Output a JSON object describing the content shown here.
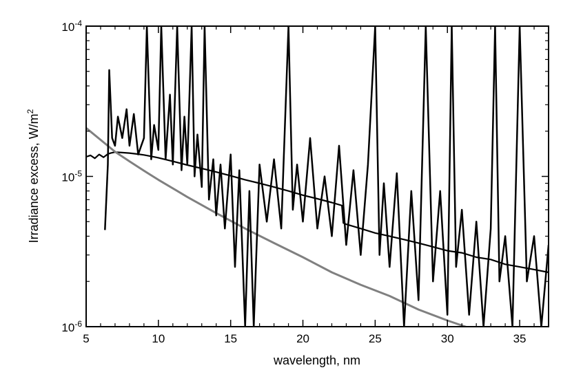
{
  "chart_data": {
    "type": "line",
    "title": "",
    "xlabel": "wavelength, nm",
    "ylabel_main": "Irradiance excess, W/m",
    "ylabel_sup": "2",
    "xlim": [
      5,
      37
    ],
    "ylim": [
      1e-06,
      0.0001
    ],
    "yscale": "log",
    "grid": false,
    "legend": "none",
    "x_ticks": [
      {
        "value": 5,
        "label": "5"
      },
      {
        "value": 10,
        "label": "10"
      },
      {
        "value": 15,
        "label": "15"
      },
      {
        "value": 20,
        "label": "20"
      },
      {
        "value": 25,
        "label": "25"
      },
      {
        "value": 30,
        "label": "30"
      },
      {
        "value": 35,
        "label": "35"
      }
    ],
    "y_ticks": [
      {
        "value": 1e-06,
        "base": "10",
        "exp": "-6"
      },
      {
        "value": 1e-05,
        "base": "10",
        "exp": "-5"
      },
      {
        "value": 0.0001,
        "base": "10",
        "exp": "-4"
      }
    ],
    "series": [
      {
        "color": "#000000",
        "x": [
          5.0,
          5.3,
          5.6,
          5.9,
          6.2,
          6.5,
          6.7,
          7.0,
          7.5,
          8.0,
          8.5,
          9.0,
          9.5,
          10.0,
          11.0,
          12.0,
          13.0,
          14.0,
          15.0,
          16.0,
          17.0,
          18.0,
          19.0,
          20.0,
          21.0,
          22.0,
          22.7,
          22.8,
          23.0,
          24.0,
          25.0,
          26.0,
          27.0,
          28.0,
          29.0,
          30.0,
          31.0,
          32.0,
          33.0,
          34.0,
          35.0,
          36.0,
          37.0
        ],
        "y": [
          1.35e-05,
          1.38e-05,
          1.32e-05,
          1.4e-05,
          1.34e-05,
          1.41e-05,
          1.43e-05,
          1.45e-05,
          1.44e-05,
          1.43e-05,
          1.41e-05,
          1.39e-05,
          1.36e-05,
          1.33e-05,
          1.26e-05,
          1.19e-05,
          1.13e-05,
          1.07e-05,
          1.01e-05,
          9.5e-06,
          9e-06,
          8.5e-06,
          8e-06,
          7.5e-06,
          7.1e-06,
          6.7e-06,
          6.4e-06,
          4.9e-06,
          4.8e-06,
          4.5e-06,
          4.2e-06,
          4e-06,
          3.8e-06,
          3.6e-06,
          3.4e-06,
          3.2e-06,
          3.1e-06,
          2.9e-06,
          2.8e-06,
          2.6e-06,
          2.5e-06,
          2.4e-06,
          2.3e-06
        ]
      },
      {
        "color": "#808080",
        "x": [
          5.0,
          6.0,
          7.0,
          8.0,
          9.0,
          10.0,
          12.0,
          14.0,
          16.0,
          18.0,
          20.0,
          22.0,
          24.0,
          26.0,
          28.0,
          30.0,
          31.5,
          32.0
        ],
        "y": [
          2.1e-05,
          1.75e-05,
          1.46e-05,
          1.26e-05,
          1.09e-05,
          9.5e-06,
          7.3e-06,
          5.7e-06,
          4.5e-06,
          3.6e-06,
          2.9e-06,
          2.3e-06,
          1.9e-06,
          1.6e-06,
          1.3e-06,
          1.1e-06,
          9.8e-07,
          9.3e-07
        ]
      },
      {
        "color": "#000000",
        "x": [
          6.3,
          6.5,
          6.6,
          6.8,
          7.0,
          7.2,
          7.5,
          7.8,
          8.0,
          8.3,
          8.6,
          9.0,
          9.2,
          9.5,
          9.7,
          10.0,
          10.2,
          10.5,
          10.8,
          11.0,
          11.3,
          11.6,
          11.8,
          12.0,
          12.3,
          12.5,
          12.7,
          13.0,
          13.2,
          13.5,
          13.8,
          14.0,
          14.3,
          14.6,
          15.0,
          15.3,
          15.6,
          16.0,
          16.3,
          16.6,
          17.0,
          17.5,
          18.0,
          18.5,
          19.0,
          19.3,
          19.6,
          20.0,
          20.5,
          21.0,
          21.5,
          22.0,
          22.5,
          23.0,
          23.5,
          24.0,
          24.5,
          25.0,
          25.3,
          25.6,
          26.0,
          26.5,
          27.0,
          27.5,
          28.0,
          28.5,
          29.0,
          29.5,
          30.0,
          30.3,
          30.6,
          31.0,
          31.5,
          32.0,
          32.5,
          33.0,
          33.3,
          33.6,
          34.0,
          34.5,
          35.0,
          35.5,
          36.0,
          36.5,
          37.0
        ],
        "y": [
          4.4e-06,
          1.2e-05,
          5.1e-05,
          1.8e-05,
          1.6e-05,
          2.5e-05,
          1.8e-05,
          2.8e-05,
          1.6e-05,
          2.6e-05,
          1.4e-05,
          1.8e-05,
          0.0001,
          1.3e-05,
          2.2e-05,
          1.5e-05,
          0.0001,
          1.3e-05,
          3.5e-05,
          1.2e-05,
          0.0001,
          1.1e-05,
          2.5e-05,
          1.2e-05,
          0.0001,
          1e-05,
          1.9e-05,
          8.5e-06,
          0.0001,
          7e-06,
          1.3e-05,
          5.5e-06,
          1.2e-05,
          4.5e-06,
          1.4e-05,
          2.5e-06,
          1.1e-05,
          1e-06,
          8e-06,
          1e-06,
          1.2e-05,
          5e-06,
          1.3e-05,
          4.5e-06,
          0.0001,
          6e-06,
          1.2e-05,
          5e-06,
          1.8e-05,
          4.5e-06,
          1e-05,
          4e-06,
          1.6e-05,
          3.5e-06,
          1.1e-05,
          3e-06,
          1.2e-05,
          0.0001,
          3e-06,
          9e-06,
          2.5e-06,
          1.05e-05,
          1e-06,
          8e-06,
          1.5e-06,
          0.0001,
          2e-06,
          8e-06,
          1.2e-06,
          0.0001,
          2.5e-06,
          6e-06,
          1.2e-06,
          5e-06,
          1e-06,
          4.5e-06,
          0.0001,
          2e-06,
          4e-06,
          1e-06,
          0.0001,
          2e-06,
          4e-06,
          1e-06,
          3.5e-06
        ]
      }
    ]
  }
}
